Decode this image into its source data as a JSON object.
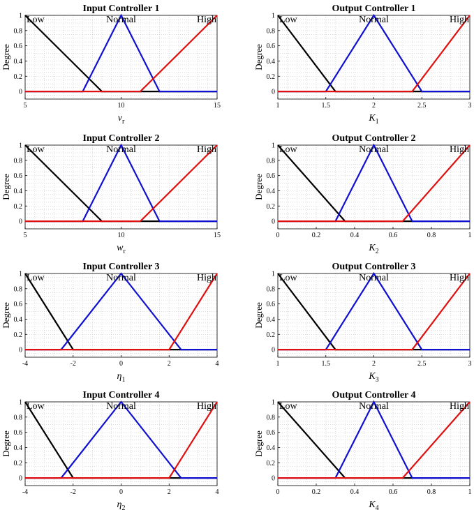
{
  "colors": {
    "low": "#000000",
    "normal": "#1010d0",
    "high": "#e01010",
    "grid": "#c8c8c8"
  },
  "chart_data": [
    {
      "type": "line",
      "title": "Input Controller 1",
      "xlabel_var": "v",
      "xlabel_sub": "r",
      "subscript_italic": true,
      "ylabel": "Degree",
      "xlim": [
        5,
        15
      ],
      "ylim": [
        -0.1,
        1
      ],
      "grid": true,
      "xticks": [
        5,
        10,
        15
      ],
      "xtick_labels": [
        "5",
        "10",
        "15"
      ],
      "yticks": [
        0,
        0.2,
        0.4,
        0.6,
        0.8,
        1
      ],
      "ytick_labels": [
        "0",
        "0.2",
        "0.4",
        "0.6",
        "0.8",
        "1"
      ],
      "series": [
        {
          "name": "Low",
          "color": "black",
          "x": [
            5,
            9,
            15
          ],
          "y": [
            1,
            0,
            0
          ]
        },
        {
          "name": "Normal",
          "color": "blue",
          "x": [
            5,
            8,
            10,
            12,
            15
          ],
          "y": [
            0,
            0,
            1,
            0,
            0
          ]
        },
        {
          "name": "High",
          "color": "red",
          "x": [
            5,
            11,
            15
          ],
          "y": [
            0,
            0,
            1
          ]
        }
      ]
    },
    {
      "type": "line",
      "title": "Output Controller 1",
      "xlabel_var": "K",
      "xlabel_sub": "1",
      "subscript_italic": false,
      "ylabel": "",
      "xlim": [
        1,
        3
      ],
      "ylim": [
        -0.1,
        1
      ],
      "grid": true,
      "xticks": [
        1,
        1.5,
        2,
        2.5,
        3
      ],
      "xtick_labels": [
        "1",
        "1.5",
        "2",
        "2.5",
        "3"
      ],
      "yticks": [
        0,
        0.2,
        0.4,
        0.6,
        0.8,
        1
      ],
      "ytick_labels": [
        "0",
        "0.2",
        "0.4",
        "0.6",
        "0.8",
        "1"
      ],
      "series": [
        {
          "name": "Low",
          "color": "black",
          "x": [
            1,
            1.6,
            3
          ],
          "y": [
            1,
            0,
            0
          ]
        },
        {
          "name": "Normal",
          "color": "blue",
          "x": [
            1,
            1.5,
            2,
            2.5,
            3
          ],
          "y": [
            0,
            0,
            1,
            0,
            0
          ]
        },
        {
          "name": "High",
          "color": "red",
          "x": [
            1,
            2.4,
            3
          ],
          "y": [
            0,
            0,
            1
          ]
        }
      ]
    },
    {
      "type": "line",
      "title": "Input Controller 2",
      "xlabel_var": "w",
      "xlabel_sub": "r",
      "subscript_italic": true,
      "ylabel": "Degree",
      "xlim": [
        5,
        15
      ],
      "ylim": [
        -0.1,
        1
      ],
      "grid": true,
      "xticks": [
        5,
        10,
        15
      ],
      "xtick_labels": [
        "5",
        "10",
        "15"
      ],
      "yticks": [
        0,
        0.2,
        0.4,
        0.6,
        0.8,
        1
      ],
      "ytick_labels": [
        "0",
        "0.2",
        "0.4",
        "0.6",
        "0.8",
        "1"
      ],
      "series": [
        {
          "name": "Low",
          "color": "black",
          "x": [
            5,
            9,
            15
          ],
          "y": [
            1,
            0,
            0
          ]
        },
        {
          "name": "Normal",
          "color": "blue",
          "x": [
            5,
            8,
            10,
            12,
            15
          ],
          "y": [
            0,
            0,
            1,
            0,
            0
          ]
        },
        {
          "name": "High",
          "color": "red",
          "x": [
            5,
            11,
            15
          ],
          "y": [
            0,
            0,
            1
          ]
        }
      ]
    },
    {
      "type": "line",
      "title": "Output Controller 2",
      "xlabel_var": "K",
      "xlabel_sub": "2",
      "subscript_italic": false,
      "ylabel": "",
      "xlim": [
        0,
        1
      ],
      "ylim": [
        -0.1,
        1
      ],
      "grid": true,
      "xticks": [
        0,
        0.2,
        0.4,
        0.6,
        0.8,
        1
      ],
      "xtick_labels": [
        "0",
        "0.2",
        "0.4",
        "0.6",
        "0.8",
        "1"
      ],
      "yticks": [
        0,
        0.2,
        0.4,
        0.6,
        0.8,
        1
      ],
      "ytick_labels": [
        "0",
        "0.2",
        "0.4",
        "0.6",
        "0.8",
        "1"
      ],
      "series": [
        {
          "name": "Low",
          "color": "black",
          "x": [
            0,
            0.35,
            1
          ],
          "y": [
            1,
            0,
            0
          ]
        },
        {
          "name": "Normal",
          "color": "blue",
          "x": [
            0,
            0.3,
            0.5,
            0.7,
            1
          ],
          "y": [
            0,
            0,
            1,
            0,
            0
          ]
        },
        {
          "name": "High",
          "color": "red",
          "x": [
            0,
            0.65,
            1
          ],
          "y": [
            0,
            0,
            1
          ]
        }
      ]
    },
    {
      "type": "line",
      "title": "Input Controller 3",
      "xlabel_var": "η",
      "xlabel_sub": "1",
      "subscript_italic": false,
      "ylabel": "Degree",
      "xlim": [
        -4,
        4
      ],
      "ylim": [
        -0.1,
        1
      ],
      "grid": true,
      "xticks": [
        -4,
        -2,
        0,
        2,
        4
      ],
      "xtick_labels": [
        "-4",
        "-2",
        "0",
        "2",
        "4"
      ],
      "yticks": [
        0,
        0.2,
        0.4,
        0.6,
        0.8,
        1
      ],
      "ytick_labels": [
        "0",
        "0.2",
        "0.4",
        "0.6",
        "0.8",
        "1"
      ],
      "series": [
        {
          "name": "Low",
          "color": "black",
          "x": [
            -4,
            -2,
            4
          ],
          "y": [
            1,
            0,
            0
          ]
        },
        {
          "name": "Normal",
          "color": "blue",
          "x": [
            -4,
            -2.5,
            0,
            2.5,
            4
          ],
          "y": [
            0,
            0,
            1,
            0,
            0
          ]
        },
        {
          "name": "High",
          "color": "red",
          "x": [
            -4,
            2,
            4
          ],
          "y": [
            0,
            0,
            1
          ]
        }
      ]
    },
    {
      "type": "line",
      "title": "Output Controller 3",
      "xlabel_var": "K",
      "xlabel_sub": "3",
      "subscript_italic": false,
      "ylabel": "",
      "xlim": [
        1,
        3
      ],
      "ylim": [
        -0.1,
        1
      ],
      "grid": true,
      "xticks": [
        1,
        1.5,
        2,
        2.5,
        3
      ],
      "xtick_labels": [
        "1",
        "1.5",
        "2",
        "2.5",
        "3"
      ],
      "yticks": [
        0,
        0.2,
        0.4,
        0.6,
        0.8,
        1
      ],
      "ytick_labels": [
        "0",
        "0.2",
        "0.4",
        "0.6",
        "0.8",
        "1"
      ],
      "series": [
        {
          "name": "Low",
          "color": "black",
          "x": [
            1,
            1.6,
            3
          ],
          "y": [
            1,
            0,
            0
          ]
        },
        {
          "name": "Normal",
          "color": "blue",
          "x": [
            1,
            1.5,
            2,
            2.5,
            3
          ],
          "y": [
            0,
            0,
            1,
            0,
            0
          ]
        },
        {
          "name": "High",
          "color": "red",
          "x": [
            1,
            2.4,
            3
          ],
          "y": [
            0,
            0,
            1
          ]
        }
      ]
    },
    {
      "type": "line",
      "title": "Input Controller 4",
      "xlabel_var": "η",
      "xlabel_sub": "2",
      "subscript_italic": false,
      "ylabel": "Degree",
      "xlim": [
        -4,
        4
      ],
      "ylim": [
        -0.1,
        1
      ],
      "grid": true,
      "xticks": [
        -4,
        -2,
        0,
        2,
        4
      ],
      "xtick_labels": [
        "-4",
        "-2",
        "0",
        "2",
        "4"
      ],
      "yticks": [
        0,
        0.2,
        0.4,
        0.6,
        0.8,
        1
      ],
      "ytick_labels": [
        "0",
        "0.2",
        "0.4",
        "0.6",
        "0.8",
        "1"
      ],
      "series": [
        {
          "name": "Low",
          "color": "black",
          "x": [
            -4,
            -2,
            4
          ],
          "y": [
            1,
            0,
            0
          ]
        },
        {
          "name": "Normal",
          "color": "blue",
          "x": [
            -4,
            -2.5,
            0,
            2.5,
            4
          ],
          "y": [
            0,
            0,
            1,
            0,
            0
          ]
        },
        {
          "name": "High",
          "color": "red",
          "x": [
            -4,
            2,
            4
          ],
          "y": [
            0,
            0,
            1
          ]
        }
      ]
    },
    {
      "type": "line",
      "title": "Output Controller 4",
      "xlabel_var": "K",
      "xlabel_sub": "4",
      "subscript_italic": false,
      "ylabel": "",
      "xlim": [
        0,
        1
      ],
      "ylim": [
        -0.1,
        1
      ],
      "grid": true,
      "xticks": [
        0,
        0.2,
        0.4,
        0.6,
        0.8,
        1
      ],
      "xtick_labels": [
        "0",
        "0.2",
        "0.4",
        "0.6",
        "0.8",
        "1"
      ],
      "yticks": [
        0,
        0.2,
        0.4,
        0.6,
        0.8,
        1
      ],
      "ytick_labels": [
        "0",
        "0.2",
        "0.4",
        "0.6",
        "0.8",
        "1"
      ],
      "series": [
        {
          "name": "Low",
          "color": "black",
          "x": [
            0,
            0.35,
            1
          ],
          "y": [
            1,
            0,
            0
          ]
        },
        {
          "name": "Normal",
          "color": "blue",
          "x": [
            0,
            0.3,
            0.5,
            0.7,
            1
          ],
          "y": [
            0,
            0,
            1,
            0,
            0
          ]
        },
        {
          "name": "High",
          "color": "red",
          "x": [
            0,
            0.65,
            1
          ],
          "y": [
            0,
            0,
            1
          ]
        }
      ]
    }
  ]
}
